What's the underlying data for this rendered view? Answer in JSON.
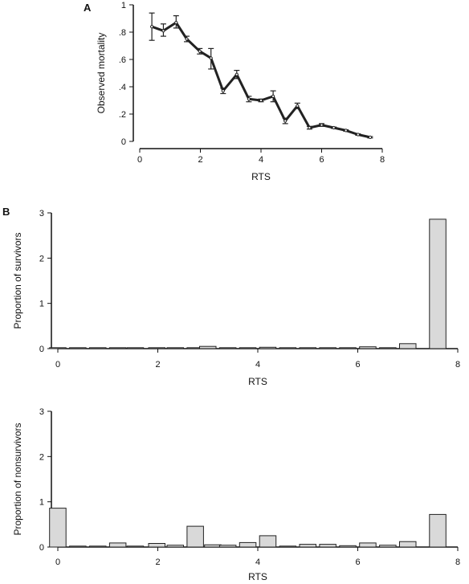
{
  "chart_data": [
    {
      "panel": "A",
      "type": "line",
      "xlabel": "RTS",
      "ylabel": "Observed mortality",
      "xlim": [
        0,
        8
      ],
      "ylim": [
        0,
        1
      ],
      "x_ticks": [
        0,
        2,
        4,
        6,
        8
      ],
      "x_tick_labels": [
        "0",
        "2",
        "4",
        "6",
        "8"
      ],
      "y_ticks": [
        0,
        0.2,
        0.4,
        0.6,
        0.8,
        1
      ],
      "y_tick_labels": [
        "0",
        ".2",
        ".4",
        ".6",
        ".8",
        "1"
      ],
      "error_bars": true,
      "series": [
        {
          "x": [
            0.4,
            0.78,
            1.2,
            1.55,
            1.98,
            2.35,
            2.75,
            3.2,
            3.6,
            4.0,
            4.4,
            4.8,
            5.2,
            5.6,
            6.0,
            6.4,
            6.8,
            7.2,
            7.6
          ],
          "y": [
            0.84,
            0.81,
            0.87,
            0.75,
            0.66,
            0.61,
            0.37,
            0.49,
            0.31,
            0.3,
            0.33,
            0.15,
            0.26,
            0.1,
            0.12,
            0.1,
            0.08,
            0.05,
            0.03
          ],
          "err_low": [
            0.74,
            0.77,
            0.83,
            0.73,
            0.64,
            0.53,
            0.35,
            0.46,
            0.29,
            0.29,
            0.29,
            0.13,
            0.24,
            0.09,
            0.11,
            0.095,
            0.075,
            0.045,
            0.025
          ],
          "err_high": [
            0.94,
            0.86,
            0.92,
            0.77,
            0.68,
            0.68,
            0.39,
            0.52,
            0.33,
            0.31,
            0.37,
            0.17,
            0.28,
            0.11,
            0.13,
            0.105,
            0.085,
            0.055,
            0.035
          ]
        }
      ]
    },
    {
      "panel": "B",
      "type": "bar",
      "xlabel": "RTS",
      "ylabel": "Proportion of survivors",
      "xlim": [
        0,
        8
      ],
      "ylim": [
        0,
        3
      ],
      "x_ticks": [
        0,
        2,
        4,
        6,
        8
      ],
      "x_tick_labels": [
        "0",
        "2",
        "4",
        "6",
        "8"
      ],
      "y_ticks": [
        0,
        1,
        2,
        3
      ],
      "y_tick_labels": [
        "0",
        "1",
        "2",
        "3"
      ],
      "bar_width": 0.33,
      "bars": [
        {
          "x": 0.0,
          "value": 0.01
        },
        {
          "x": 0.4,
          "value": 0.0
        },
        {
          "x": 0.8,
          "value": 0.0
        },
        {
          "x": 1.2,
          "value": 0.0
        },
        {
          "x": 1.55,
          "value": 0.0
        },
        {
          "x": 1.98,
          "value": 0.0
        },
        {
          "x": 2.35,
          "value": 0.0
        },
        {
          "x": 2.75,
          "value": 0.0
        },
        {
          "x": 3.0,
          "value": 0.05
        },
        {
          "x": 3.4,
          "value": 0.0
        },
        {
          "x": 3.8,
          "value": 0.0
        },
        {
          "x": 4.2,
          "value": 0.03
        },
        {
          "x": 4.6,
          "value": 0.01
        },
        {
          "x": 5.0,
          "value": 0.01
        },
        {
          "x": 5.4,
          "value": 0.0
        },
        {
          "x": 5.8,
          "value": 0.01
        },
        {
          "x": 6.2,
          "value": 0.04
        },
        {
          "x": 6.6,
          "value": 0.02
        },
        {
          "x": 7.0,
          "value": 0.11
        },
        {
          "x": 7.6,
          "value": 2.86
        }
      ]
    },
    {
      "panel": "",
      "type": "bar",
      "xlabel": "RTS",
      "ylabel": "Proportion of nonsurvivors",
      "xlim": [
        0,
        8
      ],
      "ylim": [
        0,
        3
      ],
      "x_ticks": [
        0,
        2,
        4,
        6,
        8
      ],
      "x_tick_labels": [
        "0",
        "2",
        "4",
        "6",
        "8"
      ],
      "y_ticks": [
        0,
        1,
        2,
        3
      ],
      "y_tick_labels": [
        "0",
        "1",
        "2",
        "3"
      ],
      "bar_width": 0.33,
      "bars": [
        {
          "x": 0.0,
          "value": 0.86
        },
        {
          "x": 0.4,
          "value": 0.02
        },
        {
          "x": 0.8,
          "value": 0.02
        },
        {
          "x": 1.2,
          "value": 0.09
        },
        {
          "x": 1.55,
          "value": 0.01
        },
        {
          "x": 1.98,
          "value": 0.08
        },
        {
          "x": 2.35,
          "value": 0.04
        },
        {
          "x": 2.75,
          "value": 0.46
        },
        {
          "x": 3.1,
          "value": 0.05
        },
        {
          "x": 3.4,
          "value": 0.04
        },
        {
          "x": 3.8,
          "value": 0.1
        },
        {
          "x": 4.2,
          "value": 0.25
        },
        {
          "x": 4.6,
          "value": 0.01
        },
        {
          "x": 5.0,
          "value": 0.06
        },
        {
          "x": 5.4,
          "value": 0.06
        },
        {
          "x": 5.8,
          "value": 0.03
        },
        {
          "x": 6.2,
          "value": 0.09
        },
        {
          "x": 6.6,
          "value": 0.04
        },
        {
          "x": 7.0,
          "value": 0.12
        },
        {
          "x": 7.6,
          "value": 0.72
        }
      ]
    }
  ],
  "panel_labels": {
    "a": "A",
    "b": "B"
  },
  "colors": {
    "line": "#222222",
    "bar_fill": "#d9d9d9",
    "bar_stroke": "#222222",
    "axis": "#111111"
  }
}
